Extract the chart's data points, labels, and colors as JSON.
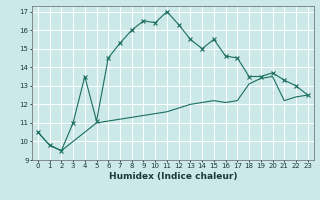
{
  "title": "",
  "xlabel": "Humidex (Indice chaleur)",
  "background_color": "#cce8e8",
  "grid_color": "#ffffff",
  "line_color": "#1a6e5e",
  "xlim": [
    -0.5,
    23.5
  ],
  "ylim": [
    9,
    17.3
  ],
  "yticks": [
    9,
    10,
    11,
    12,
    13,
    14,
    15,
    16,
    17
  ],
  "xticks": [
    0,
    1,
    2,
    3,
    4,
    5,
    6,
    7,
    8,
    9,
    10,
    11,
    12,
    13,
    14,
    15,
    16,
    17,
    18,
    19,
    20,
    21,
    22,
    23
  ],
  "series1_x": [
    0,
    1,
    2,
    3,
    4,
    5,
    6,
    7,
    8,
    9,
    10,
    11,
    12,
    13,
    14,
    15,
    16,
    17,
    18,
    19,
    20,
    21,
    22,
    23
  ],
  "series1_y": [
    10.5,
    9.8,
    9.5,
    11.0,
    13.5,
    11.1,
    14.5,
    15.3,
    16.0,
    16.5,
    16.4,
    17.0,
    16.3,
    15.5,
    15.0,
    15.5,
    14.6,
    14.5,
    13.5,
    13.5,
    13.7,
    13.3,
    13.0,
    12.5
  ],
  "series2_x": [
    0,
    1,
    2,
    3,
    4,
    5,
    6,
    7,
    8,
    9,
    10,
    11,
    12,
    13,
    14,
    15,
    16,
    17,
    18,
    19,
    20,
    21,
    22,
    23
  ],
  "series2_y": [
    10.5,
    9.8,
    9.5,
    10.0,
    10.5,
    11.0,
    11.1,
    11.2,
    11.3,
    11.4,
    11.5,
    11.6,
    11.8,
    12.0,
    12.1,
    12.2,
    12.1,
    12.2,
    13.1,
    13.4,
    13.5,
    12.2,
    12.4,
    12.5
  ],
  "xlabel_fontsize": 6.5,
  "tick_fontsize": 5,
  "tick_color": "#1a3a3a"
}
